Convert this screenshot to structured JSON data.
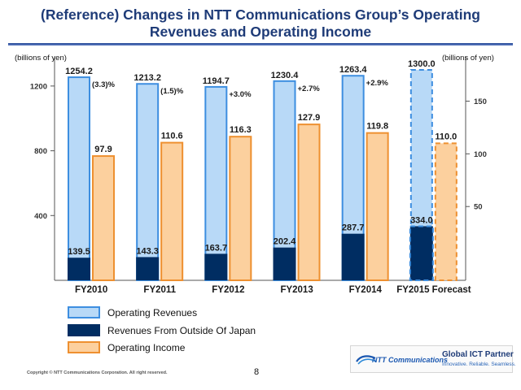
{
  "title_line1": "(Reference)  Changes in NTT Communications Group’s Operating",
  "title_line2": "Revenues and Operating Income",
  "chart_data": {
    "type": "bar",
    "categories": [
      "FY2010",
      "FY2011",
      "FY2012",
      "FY2013",
      "FY2014",
      "FY2015 Forecast"
    ],
    "forecast_index": 5,
    "series": [
      {
        "name": "Operating Revenues",
        "axis": "left",
        "values": [
          1254.2,
          1213.2,
          1194.7,
          1230.4,
          1263.4,
          1300.0
        ],
        "labels": [
          "1254.2",
          "1213.2",
          "1194.7",
          "1230.4",
          "1263.4",
          "1300.0"
        ]
      },
      {
        "name": "Revenues From Outside Of Japan",
        "axis": "left",
        "values": [
          139.5,
          143.3,
          163.7,
          202.4,
          287.7,
          334.0
        ],
        "labels": [
          "139.5",
          "143.3",
          "163.7",
          "202.4",
          "287.7",
          "334.0"
        ]
      },
      {
        "name": "Operating Income",
        "axis": "right",
        "values": [
          97.9,
          110.6,
          116.3,
          127.9,
          119.8,
          110.0
        ],
        "labels": [
          "97.9",
          "110.6",
          "116.3",
          "127.9",
          "119.8",
          "110.0"
        ]
      }
    ],
    "growth_labels": [
      "(3.3)%",
      "(1.5)%",
      "+3.0%",
      "+2.7%",
      "+2.9%"
    ],
    "left_axis": {
      "label": "(billions of yen)",
      "range": [
        0,
        1380
      ],
      "ticks": [
        400,
        800,
        1200
      ]
    },
    "right_axis": {
      "label": "(billions of yen)",
      "range": [
        -20,
        192
      ],
      "ticks": [
        50,
        100,
        150
      ]
    },
    "colors": {
      "revenue_fill": "#b8d9f7",
      "revenue_stroke": "#3d8ee0",
      "overseas_fill": "#002d62",
      "income_fill": "#fcd09e",
      "income_stroke": "#ee9030",
      "axis": "#555555"
    }
  },
  "legend": [
    {
      "label": "Operating Revenues",
      "fill": "#b8d9f7",
      "stroke": "#3d8ee0"
    },
    {
      "label": "Revenues From Outside Of Japan",
      "fill": "#002d62",
      "stroke": "#002d62"
    },
    {
      "label": "Operating Income",
      "fill": "#fcd09e",
      "stroke": "#ee9030"
    }
  ],
  "logo": {
    "brand": "NTT Communications",
    "tagline": "Global ICT Partner",
    "subtagline": "Innovative. Reliable. Seamless."
  },
  "copyright": "Copyright © NTT Communications Corporation. All right reserved.",
  "page_number": "8"
}
